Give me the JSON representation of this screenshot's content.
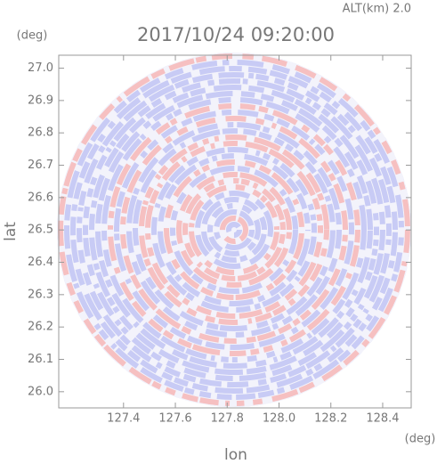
{
  "chart_data": {
    "type": "radar-ppi",
    "title": "2017/10/24 09:20:00",
    "subtitle": "ALT(km) 2.0",
    "x_label": "lon",
    "y_label": "lat",
    "x_unit": "(deg)",
    "y_unit": "(deg)",
    "xlim": [
      127.15,
      128.51
    ],
    "ylim": [
      25.95,
      27.04
    ],
    "xticks": [
      127.4,
      127.6,
      127.8,
      {
        "value": 128,
        "label": "128.0"
      },
      128.2,
      128.4
    ],
    "yticks": [
      {
        "value": 26,
        "label": "26.0"
      },
      26.1,
      26.2,
      26.3,
      26.4,
      26.5,
      26.6,
      26.7,
      26.8,
      26.9,
      {
        "value": 27,
        "label": "27.0"
      }
    ]
  }
}
